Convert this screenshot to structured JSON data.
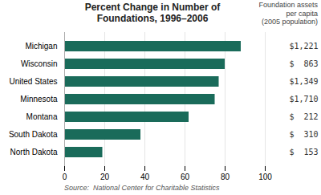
{
  "chart_data": {
    "type": "bar",
    "orientation": "horizontal",
    "title": "Percent Change in Number of\nFoundations, 1996–2006",
    "categories": [
      "Michigan",
      "Wisconsin",
      "United States",
      "Minnesota",
      "Montana",
      "South Dakota",
      "North Dakota"
    ],
    "values": [
      88,
      80,
      77,
      75,
      62,
      38,
      19
    ],
    "color": "#1a6b5a",
    "xlim": [
      0,
      100
    ],
    "xticks": [
      0,
      20,
      40,
      60,
      80,
      100
    ],
    "grid": true,
    "annotations": [
      {
        "text": "Foundation assets\nper capita\n(2005 population)"
      },
      {
        "text": "$1,221",
        "category": "Michigan"
      },
      {
        "text": "$  863",
        "category": "Wisconsin"
      },
      {
        "text": "$1,349",
        "category": "United States"
      },
      {
        "text": "$1,710",
        "category": "Minnesota"
      },
      {
        "text": "$  212",
        "category": "Montana"
      },
      {
        "text": "$  310",
        "category": "South Dakota"
      },
      {
        "text": "$  153",
        "category": "North Dakota"
      }
    ],
    "source": "Source:  National Center for Charitable Statistics"
  }
}
